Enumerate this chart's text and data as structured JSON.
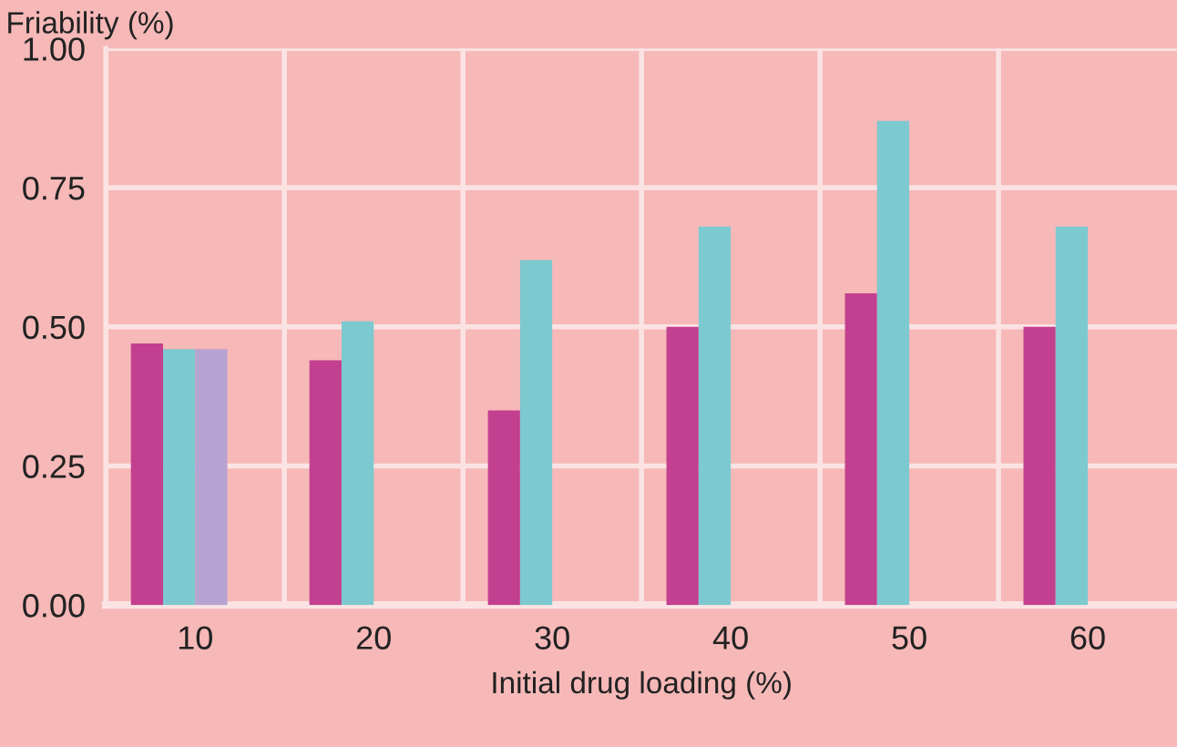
{
  "chart_data": {
    "type": "bar",
    "xlabel": "Initial drug loading (%)",
    "ylabel": "Friability (%)",
    "categories": [
      "10",
      "20",
      "30",
      "40",
      "50",
      "60"
    ],
    "series": [
      {
        "color": "#c2408f",
        "values": [
          0.47,
          0.44,
          0.35,
          0.5,
          0.56,
          0.5
        ]
      },
      {
        "color": "#7cc9d0",
        "values": [
          0.46,
          0.51,
          0.62,
          0.68,
          0.87,
          0.68
        ]
      },
      {
        "color": "#b6a3d1",
        "values": [
          0.46,
          null,
          null,
          null,
          null,
          null
        ]
      }
    ],
    "ylim": [
      0,
      1
    ],
    "yticks": [
      {
        "value": 0,
        "label": "0.00"
      },
      {
        "value": 0.25,
        "label": "0.25"
      },
      {
        "value": 0.5,
        "label": "0.50"
      },
      {
        "value": 0.75,
        "label": "0.75"
      },
      {
        "value": 1,
        "label": "1.00"
      }
    ],
    "grid": true
  }
}
